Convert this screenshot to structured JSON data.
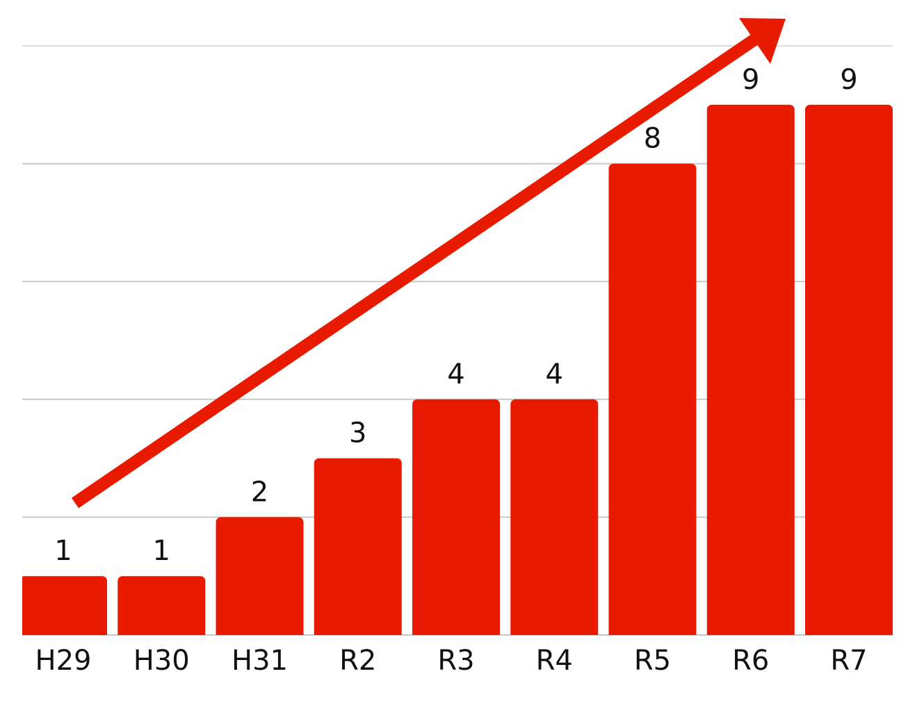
{
  "chart_data": {
    "type": "bar",
    "categories": [
      "H29",
      "H30",
      "H31",
      "R2",
      "R3",
      "R4",
      "R5",
      "R6",
      "R7"
    ],
    "values": [
      1,
      1,
      2,
      3,
      4,
      4,
      8,
      9,
      9
    ],
    "color": "#e81a00",
    "ylim": [
      0,
      10
    ],
    "yticks": [
      0,
      2,
      4,
      6,
      8,
      10
    ],
    "grid": true
  }
}
